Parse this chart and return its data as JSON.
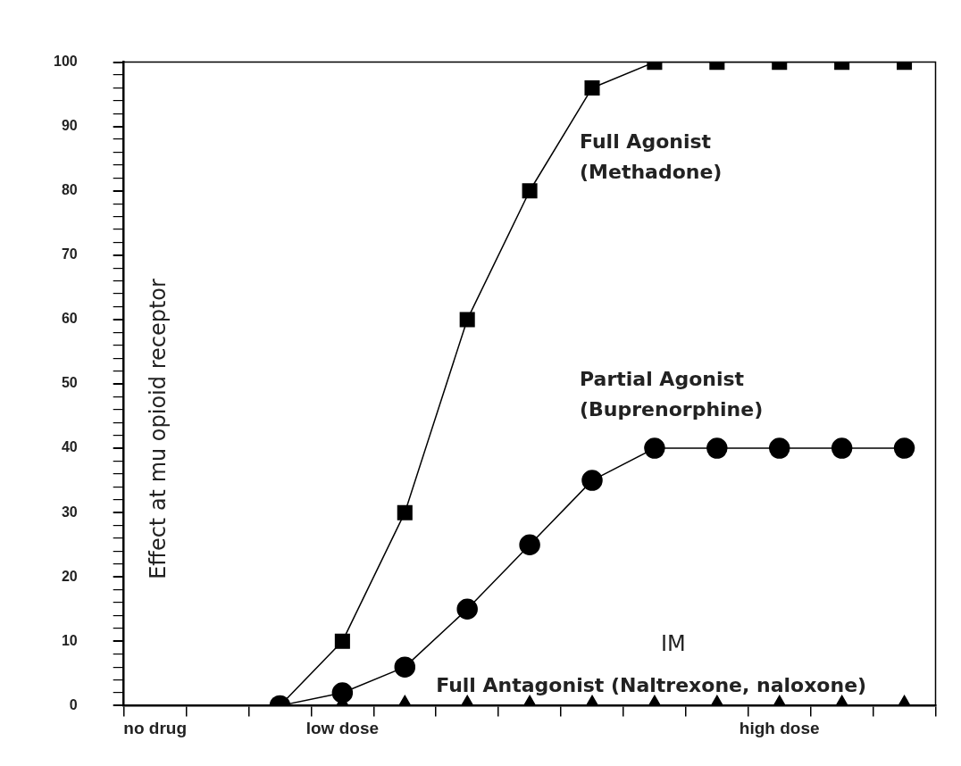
{
  "chart_data": {
    "type": "line",
    "ylabel": "Effect at mu opioid receptor",
    "categories": [
      "no drug",
      null,
      null,
      "low dose",
      null,
      null,
      null,
      null,
      null,
      null,
      "high dose",
      null,
      null
    ],
    "ylim": [
      0,
      100
    ],
    "yticks": [
      0,
      {
        "value": 2,
        "label": null
      },
      {
        "value": 4,
        "label": null
      },
      {
        "value": 6,
        "label": null
      },
      {
        "value": 8,
        "label": null
      },
      10,
      {
        "value": 12,
        "label": null
      },
      {
        "value": 14,
        "label": null
      },
      {
        "value": 16,
        "label": null
      },
      {
        "value": 18,
        "label": null
      },
      20,
      {
        "value": 22,
        "label": null
      },
      {
        "value": 24,
        "label": null
      },
      {
        "value": 26,
        "label": null
      },
      {
        "value": 28,
        "label": null
      },
      30,
      {
        "value": 32,
        "label": null
      },
      {
        "value": 34,
        "label": null
      },
      {
        "value": 36,
        "label": null
      },
      {
        "value": 38,
        "label": null
      },
      40,
      {
        "value": 42,
        "label": null
      },
      {
        "value": 44,
        "label": null
      },
      {
        "value": 46,
        "label": null
      },
      {
        "value": 48,
        "label": null
      },
      50,
      {
        "value": 52,
        "label": null
      },
      {
        "value": 54,
        "label": null
      },
      {
        "value": 56,
        "label": null
      },
      {
        "value": 58,
        "label": null
      },
      60,
      {
        "value": 62,
        "label": null
      },
      {
        "value": 64,
        "label": null
      },
      {
        "value": 66,
        "label": null
      },
      {
        "value": 68,
        "label": null
      },
      70,
      {
        "value": 72,
        "label": null
      },
      {
        "value": 74,
        "label": null
      },
      {
        "value": 76,
        "label": null
      },
      {
        "value": 78,
        "label": null
      },
      80,
      {
        "value": 82,
        "label": null
      },
      {
        "value": 84,
        "label": null
      },
      {
        "value": 86,
        "label": null
      },
      {
        "value": 88,
        "label": null
      },
      90,
      {
        "value": 92,
        "label": null
      },
      {
        "value": 94,
        "label": null
      },
      {
        "value": 96,
        "label": null
      },
      {
        "value": 98,
        "label": null
      },
      100
    ],
    "grid": false,
    "series": [
      {
        "name": "Full Agonist (Methadone)",
        "color": "#000000",
        "marker": "square",
        "values": [
          null,
          null,
          0,
          10,
          30,
          60,
          80,
          96,
          100,
          100,
          100,
          100,
          100
        ]
      },
      {
        "name": "Partial Agonist (Buprenorphine)",
        "color": "#000000",
        "marker": "circle",
        "values": [
          null,
          null,
          0,
          2,
          6,
          15,
          25,
          35,
          40,
          40,
          40,
          40,
          40
        ]
      },
      {
        "name": "Full Antagonist (Naltrexone, naloxone)",
        "type": "scatter",
        "color": "#000000",
        "marker": "triangle",
        "values": [
          null,
          null,
          null,
          0,
          0,
          0,
          0,
          0,
          0,
          0,
          0,
          0,
          0
        ]
      }
    ],
    "annotations": [
      "IM"
    ]
  }
}
